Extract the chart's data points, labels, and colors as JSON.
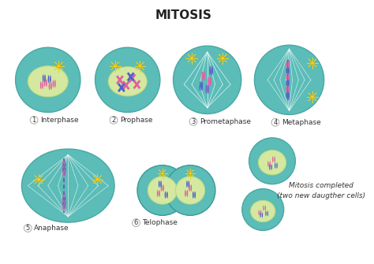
{
  "title": "MITOSIS",
  "bg_color": "#ffffff",
  "cell_outer_color": "#5bbcb8",
  "cell_outer_edge": "#4aa8a4",
  "nucleus_color": "#d4e8a0",
  "nucleus_edge": "#b8d880",
  "spindle_line_color": "#c8d8c8",
  "chrom_pink": "#e060a0",
  "chrom_blue": "#5060c8",
  "chrom_purple": "#8060c8",
  "centrosome_color": "#f0d020",
  "phase_labels": [
    "Interphase",
    "Prophase",
    "Prometaphase",
    "Metaphase",
    "Anaphase",
    "Telophase"
  ],
  "phase_numbers": [
    "1",
    "2",
    "3",
    "4",
    "5",
    "6"
  ],
  "completed_text": [
    "Mitosis completed",
    "(two new daugther cells)"
  ],
  "title_fontsize": 11,
  "label_fontsize": 6.5,
  "number_fontsize": 6
}
